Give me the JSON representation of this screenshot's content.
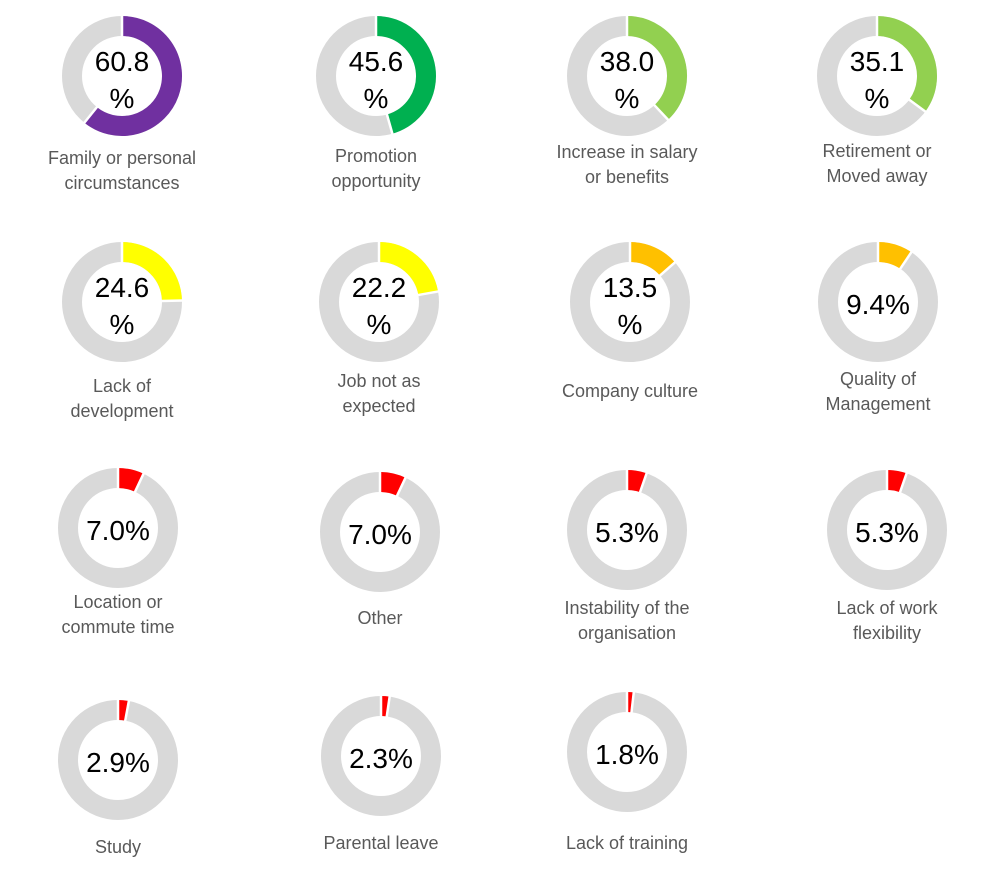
{
  "chart_data": {
    "type": "donut",
    "track_color": "#d9d9d9",
    "items": [
      {
        "value_text": [
          "60.8",
          "%"
        ],
        "label": [
          "Family or personal",
          "circumstances"
        ],
        "value": 60.8,
        "color": "#7030a0"
      },
      {
        "value_text": [
          "45.6",
          "%"
        ],
        "label": [
          "Promotion",
          "opportunity"
        ],
        "value": 45.6,
        "color": "#00b050"
      },
      {
        "value_text": [
          "38.0",
          "%"
        ],
        "label": [
          "Increase in salary",
          "or benefits"
        ],
        "value": 38.0,
        "color": "#92d050"
      },
      {
        "value_text": [
          "35.1",
          "%"
        ],
        "label": [
          "Retirement or",
          "Moved away"
        ],
        "value": 35.1,
        "color": "#92d050"
      },
      {
        "value_text": [
          "24.6",
          "%"
        ],
        "label": [
          "Lack of",
          "development"
        ],
        "value": 24.6,
        "color": "#ffff00"
      },
      {
        "value_text": [
          "22.2",
          "%"
        ],
        "label": [
          "Job not as",
          "expected"
        ],
        "value": 22.2,
        "color": "#ffff00"
      },
      {
        "value_text": [
          "13.5",
          "%"
        ],
        "label": [
          "Company culture"
        ],
        "value": 13.5,
        "color": "#ffc000"
      },
      {
        "value_text": [
          "9.4%"
        ],
        "label": [
          "Quality of",
          "Management"
        ],
        "value": 9.4,
        "color": "#ffc000"
      },
      {
        "value_text": [
          "7.0%"
        ],
        "label": [
          "Location or",
          "commute time"
        ],
        "value": 7.0,
        "color": "#ff0000"
      },
      {
        "value_text": [
          "7.0%"
        ],
        "label": [
          "Other"
        ],
        "value": 7.0,
        "color": "#ff0000"
      },
      {
        "value_text": [
          "5.3%"
        ],
        "label": [
          "Instability of the",
          "organisation"
        ],
        "value": 5.3,
        "color": "#ff0000"
      },
      {
        "value_text": [
          "5.3%"
        ],
        "label": [
          "Lack of work",
          "flexibility"
        ],
        "value": 5.3,
        "color": "#ff0000"
      },
      {
        "value_text": [
          "2.9%"
        ],
        "label": [
          "Study"
        ],
        "value": 2.9,
        "color": "#ff0000"
      },
      {
        "value_text": [
          "2.3%"
        ],
        "label": [
          "Parental leave"
        ],
        "value": 2.3,
        "color": "#ff0000"
      },
      {
        "value_text": [
          "1.8%"
        ],
        "label": [
          "Lack of training"
        ],
        "value": 1.8,
        "color": "#ff0000"
      }
    ]
  }
}
